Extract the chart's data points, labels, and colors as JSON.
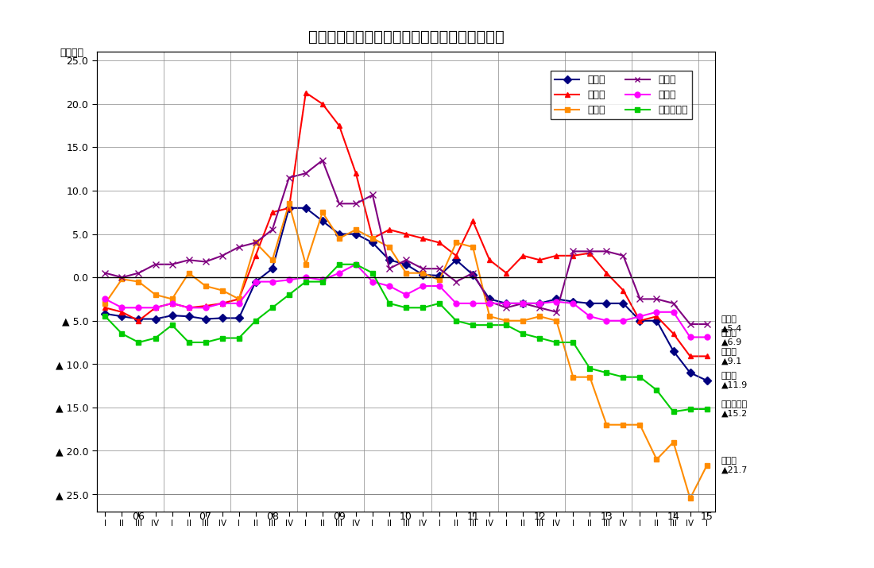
{
  "title": "産業別従業員数過不足ＤＩ推移（今期の水準）",
  "ylabel": "（ＤＩ）",
  "ylim": [
    25.0,
    -25.0
  ],
  "yticks": [
    25.0,
    20.0,
    15.0,
    10.0,
    5.0,
    0.0,
    -5.0,
    -10.0,
    -15.0,
    -20.0,
    -25.0
  ],
  "ytick_labels": [
    "▲25.0",
    "▲20.0",
    "▲15.0",
    "▲10.0",
    "▲5.0",
    "0.0",
    "5.0",
    "10.0",
    "15.0",
    "20.0",
    "25.0"
  ],
  "x_labels": [
    "I",
    "II",
    "III",
    "IV",
    "I",
    "II",
    "III",
    "IV",
    "I",
    "II",
    "III",
    "IV",
    "I",
    "II",
    "III",
    "IV",
    "I",
    "II",
    "III",
    "IV",
    "I",
    "II",
    "III",
    "IV",
    "I",
    "II",
    "III",
    "IV",
    "I",
    "II",
    "III",
    "IV",
    "I",
    "II",
    "III",
    "IV",
    "I"
  ],
  "year_labels": [
    [
      "06",
      2
    ],
    [
      "07",
      6
    ],
    [
      "08",
      10
    ],
    [
      "09",
      14
    ],
    [
      "10",
      18
    ],
    [
      "11",
      22
    ],
    [
      "12",
      26
    ],
    [
      "13",
      30
    ],
    [
      "14",
      34
    ],
    [
      "15",
      36
    ]
  ],
  "series": {
    "全産業": {
      "color": "#000080",
      "marker": "D",
      "markersize": 5,
      "linewidth": 1.5,
      "values": [
        -4.2,
        -4.5,
        -4.8,
        -4.8,
        -4.4,
        -4.5,
        -4.8,
        -4.7,
        -4.7,
        -0.5,
        1.0,
        8.0,
        8.0,
        6.5,
        5.0,
        5.0,
        4.0,
        2.0,
        1.5,
        0.3,
        0.2,
        2.0,
        0.3,
        -2.5,
        -3.0,
        -3.0,
        -3.0,
        -2.5,
        -2.8,
        -3.0,
        -3.0,
        -3.0,
        -5.0,
        -5.0,
        -8.5,
        -11.0,
        -11.9
      ]
    },
    "製造業": {
      "color": "#FF0000",
      "marker": "^",
      "markersize": 5,
      "linewidth": 1.5,
      "values": [
        -3.5,
        -4.0,
        -5.0,
        -3.5,
        -3.0,
        -3.5,
        -3.3,
        -3.0,
        -2.5,
        2.5,
        7.5,
        8.0,
        21.3,
        20.0,
        17.5,
        12.0,
        4.5,
        5.5,
        5.0,
        4.5,
        4.0,
        2.5,
        6.5,
        2.0,
        0.5,
        2.5,
        2.0,
        2.5,
        2.5,
        2.8,
        0.5,
        -1.5,
        -5.0,
        -4.5,
        -6.5,
        -9.1,
        -9.1
      ]
    },
    "建設業": {
      "color": "#FF8C00",
      "marker": "s",
      "markersize": 5,
      "linewidth": 1.5,
      "values": [
        -3.0,
        -0.2,
        -0.5,
        -2.0,
        -2.5,
        0.5,
        -1.0,
        -1.5,
        -2.5,
        4.0,
        2.0,
        8.5,
        1.5,
        7.5,
        4.5,
        5.5,
        4.5,
        3.5,
        0.5,
        0.5,
        -0.3,
        4.0,
        3.5,
        -4.5,
        -5.0,
        -5.0,
        -4.5,
        -5.0,
        -11.5,
        -11.5,
        -17.0,
        -17.0,
        -17.0,
        -21.0,
        -19.0,
        -25.5,
        -21.7
      ]
    },
    "卸売業": {
      "color": "#800080",
      "marker": "x",
      "markersize": 6,
      "linewidth": 1.5,
      "values": [
        0.5,
        0.0,
        0.5,
        1.5,
        1.5,
        2.0,
        1.8,
        2.5,
        3.5,
        4.0,
        5.5,
        11.5,
        12.0,
        13.5,
        8.5,
        8.5,
        9.5,
        1.0,
        2.0,
        1.0,
        1.0,
        -0.5,
        0.5,
        -2.8,
        -3.5,
        -3.0,
        -3.5,
        -4.0,
        3.0,
        3.0,
        3.0,
        2.5,
        -2.5,
        -2.5,
        -3.0,
        -5.4,
        -5.4
      ]
    },
    "小売業": {
      "color": "#FF00FF",
      "marker": "o",
      "markersize": 5,
      "linewidth": 1.5,
      "values": [
        -2.5,
        -3.5,
        -3.5,
        -3.5,
        -3.0,
        -3.5,
        -3.5,
        -3.0,
        -3.0,
        -0.5,
        -0.5,
        -0.3,
        0.0,
        -0.3,
        0.5,
        1.5,
        -0.5,
        -1.0,
        -2.0,
        -1.0,
        -1.0,
        -3.0,
        -3.0,
        -3.0,
        -3.0,
        -3.0,
        -3.0,
        -2.8,
        -3.0,
        -4.5,
        -5.0,
        -5.0,
        -4.5,
        -4.0,
        -4.0,
        -6.9,
        -6.9
      ]
    },
    "サービス業": {
      "color": "#00CC00",
      "marker": "s",
      "markersize": 5,
      "linewidth": 1.5,
      "values": [
        -4.5,
        -6.5,
        -7.5,
        -7.0,
        -5.5,
        -7.5,
        -7.5,
        -7.0,
        -7.0,
        -5.0,
        -3.5,
        -2.0,
        -0.5,
        -0.5,
        1.5,
        1.5,
        0.5,
        -3.0,
        -3.5,
        -3.5,
        -3.0,
        -5.0,
        -5.5,
        -5.5,
        -5.5,
        -6.5,
        -7.0,
        -7.5,
        -7.5,
        -10.5,
        -11.0,
        -11.5,
        -11.5,
        -13.0,
        -15.5,
        -15.2,
        -15.2
      ]
    }
  },
  "legend_items": [
    [
      "全産業",
      "#000080",
      "D"
    ],
    [
      "製造業",
      "#FF0000",
      "^"
    ],
    [
      "建設業",
      "#FF8C00",
      "s"
    ],
    [
      "卸売業",
      "#800080",
      "x"
    ],
    [
      "小売業",
      "#FF00FF",
      "o"
    ],
    [
      "サービス業",
      "#00CC00",
      "s"
    ]
  ],
  "end_labels": [
    [
      "卸売業\n▲5.4",
      "#800080",
      -5.4
    ],
    [
      "小売業\n▲6.9",
      "#FF00FF",
      -6.9
    ],
    [
      "製造業\n▲9.1",
      "#FF0000",
      -9.1
    ],
    [
      "全産業\n▲11.9",
      "#000080",
      -11.9
    ],
    [
      "サービス業\n▲15.2",
      "#00CC00",
      -15.2
    ],
    [
      "建設業\n▲21.7",
      "#FF8C00",
      -21.7
    ]
  ]
}
